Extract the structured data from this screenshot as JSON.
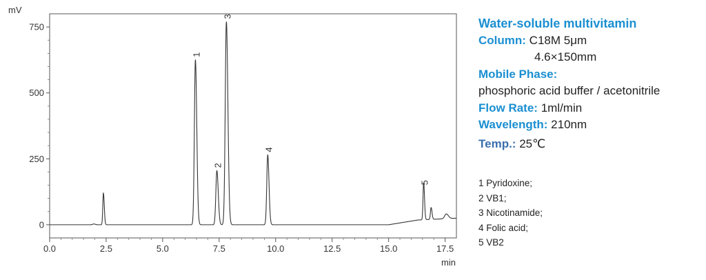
{
  "chart_data": {
    "type": "line",
    "title": "",
    "xlabel": "min",
    "ylabel": "mV",
    "xlim": [
      0,
      18
    ],
    "ylim": [
      -50,
      800
    ],
    "x_ticks": [
      0.0,
      2.5,
      5.0,
      7.5,
      10.0,
      12.5,
      15.0,
      17.5
    ],
    "x_tick_labels": [
      "0.0",
      "2.5",
      "5.0",
      "7.5",
      "10.0",
      "12.5",
      "15.0",
      "17.5"
    ],
    "y_ticks": [
      0,
      250,
      500,
      750
    ],
    "y_tick_labels": [
      "0",
      "250",
      "500",
      "750"
    ],
    "grid": false,
    "series": [
      {
        "color": "#333333",
        "baseline": 0,
        "peaks": [
          {
            "label": "",
            "t": 1.95,
            "height": 3,
            "sigma": 0.05
          },
          {
            "label": "",
            "t": 2.38,
            "height": 120,
            "sigma": 0.028
          },
          {
            "label": "1",
            "t": 6.45,
            "height": 625,
            "sigma": 0.045
          },
          {
            "label": "2",
            "t": 7.4,
            "height": 205,
            "sigma": 0.045
          },
          {
            "label": "3",
            "t": 7.82,
            "height": 770,
            "sigma": 0.05
          },
          {
            "label": "4",
            "t": 9.65,
            "height": 265,
            "sigma": 0.042
          },
          {
            "label": "5",
            "t": 16.55,
            "height": 140,
            "sigma": 0.028
          },
          {
            "label": "",
            "t": 16.88,
            "height": 45,
            "sigma": 0.03
          },
          {
            "label": "",
            "t": 17.55,
            "height": 18,
            "sigma": 0.07
          }
        ]
      }
    ]
  },
  "info": {
    "title": "Water-soluble multivitamin",
    "column_label": "Column:",
    "column_value": "C18M 5μm",
    "column_dims": "4.6×150mm",
    "mobile_phase_label": "Mobile Phase:",
    "mobile_phase_value": "phosphoric acid buffer / acetonitrile",
    "flow_rate_label": "Flow Rate:",
    "flow_rate_value": "1ml/min",
    "wavelength_label": "Wavelength:",
    "wavelength_value": "210nm",
    "temp_label": "Temp.:",
    "temp_value": "25℃"
  },
  "legend": [
    "1 Pyridoxine;",
    "2 VB1;",
    "3 Nicotinamide;",
    "4 Folic acid;",
    "5 VB2"
  ]
}
